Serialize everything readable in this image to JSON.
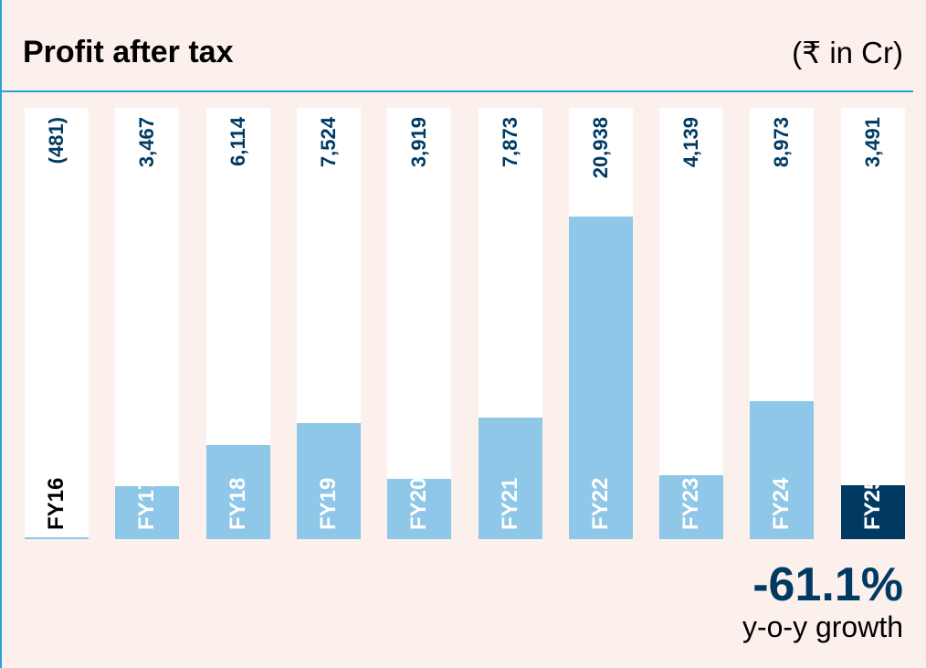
{
  "chart_data": {
    "type": "bar",
    "title": "Profit after tax",
    "unit": "(₹ in Cr)",
    "categories": [
      "FY16",
      "FY17",
      "FY18",
      "FY19",
      "FY20",
      "FY21",
      "FY22",
      "FY23",
      "FY24",
      "FY25"
    ],
    "values": [
      -481,
      3467,
      6114,
      7524,
      3919,
      7873,
      20938,
      4139,
      8973,
      3491
    ],
    "value_labels": [
      "(481)",
      "3,467",
      "6,114",
      "7,524",
      "3,919",
      "7,873",
      "20,938",
      "4,139",
      "8,973",
      "3,491"
    ],
    "highlight": "FY25",
    "colors": {
      "bar": "#8ec7e8",
      "highlight": "#003a63",
      "column": "#ffffff"
    },
    "ylim": [
      0,
      28000
    ]
  },
  "growth": {
    "value": "-61.1%",
    "label": "y-o-y growth"
  }
}
